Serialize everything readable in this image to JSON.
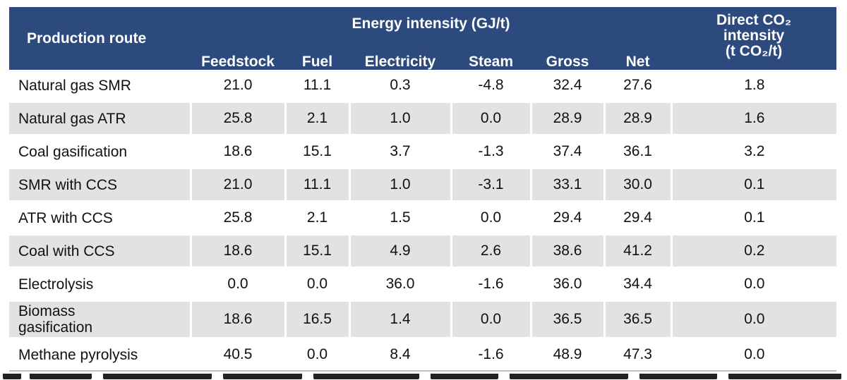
{
  "table": {
    "header": {
      "route": "Production route",
      "energy_group": "Energy intensity (GJ/t)",
      "co2_line1": "Direct CO₂",
      "co2_line2": "intensity",
      "co2_line3": "(t CO₂/t)",
      "columns": [
        "Feedstock",
        "Fuel",
        "Electricity",
        "Steam",
        "Gross",
        "Net"
      ]
    },
    "rows": [
      {
        "route": "Natural gas SMR",
        "feedstock": "21.0",
        "fuel": "11.1",
        "electricity": "0.3",
        "steam": "-4.8",
        "gross": "32.4",
        "net": "27.6",
        "co2": "1.8"
      },
      {
        "route": "Natural gas ATR",
        "feedstock": "25.8",
        "fuel": "2.1",
        "electricity": "1.0",
        "steam": "0.0",
        "gross": "28.9",
        "net": "28.9",
        "co2": "1.6"
      },
      {
        "route": "Coal gasification",
        "feedstock": "18.6",
        "fuel": "15.1",
        "electricity": "3.7",
        "steam": "-1.3",
        "gross": "37.4",
        "net": "36.1",
        "co2": "3.2"
      },
      {
        "route": "SMR with CCS",
        "feedstock": "21.0",
        "fuel": "11.1",
        "electricity": "1.0",
        "steam": "-3.1",
        "gross": "33.1",
        "net": "30.0",
        "co2": "0.1"
      },
      {
        "route": "ATR with CCS",
        "feedstock": "25.8",
        "fuel": "2.1",
        "electricity": "1.5",
        "steam": "0.0",
        "gross": "29.4",
        "net": "29.4",
        "co2": "0.1"
      },
      {
        "route": "Coal with CCS",
        "feedstock": "18.6",
        "fuel": "15.1",
        "electricity": "4.9",
        "steam": "2.6",
        "gross": "38.6",
        "net": "41.2",
        "co2": "0.2"
      },
      {
        "route": "Electrolysis",
        "feedstock": "0.0",
        "fuel": "0.0",
        "electricity": "36.0",
        "steam": "-1.6",
        "gross": "36.0",
        "net": "34.4",
        "co2": "0.0"
      },
      {
        "route": "Biomass gasification",
        "feedstock": "18.6",
        "fuel": "16.5",
        "electricity": "1.4",
        "steam": "0.0",
        "gross": "36.5",
        "net": "36.5",
        "co2": "0.0"
      },
      {
        "route": "Methane pyrolysis",
        "feedstock": "40.5",
        "fuel": "0.0",
        "electricity": "8.4",
        "steam": "-1.6",
        "gross": "48.9",
        "net": "47.3",
        "co2": "0.0"
      }
    ]
  },
  "colors": {
    "header_bg": "#2c4a7e",
    "header_text": "#ffffff",
    "stripe_bg": "#e2e2e2",
    "body_text": "#111111"
  }
}
